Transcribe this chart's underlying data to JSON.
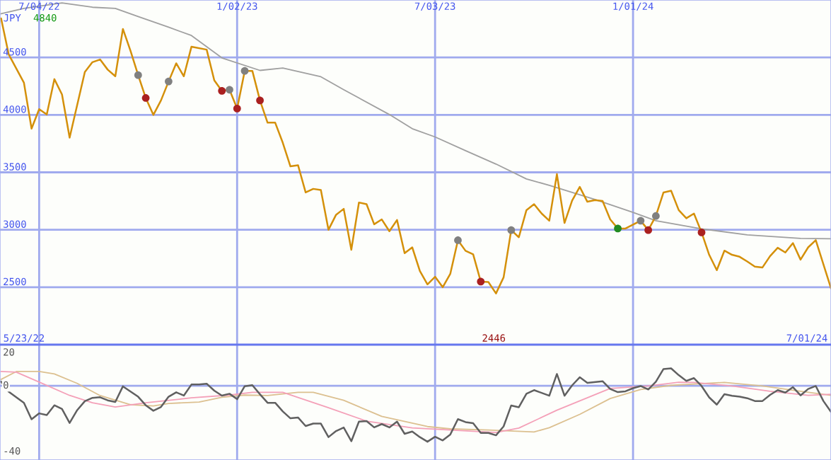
{
  "chart_data": [
    {
      "type": "line",
      "xlim": [
        "2022-05-29",
        "2024-07-01"
      ],
      "ylim": [
        2000,
        5000
      ],
      "yticks": [
        2500,
        3000,
        3500,
        4000,
        4500
      ],
      "xticks": [
        {
          "value": "2022-07-04",
          "label": "7/04/22"
        },
        {
          "value": "2023-01-02",
          "label": "1/02/23"
        },
        {
          "value": "2023-07-03",
          "label": "7/03/23"
        },
        {
          "value": "2024-01-01",
          "label": "1/01/24"
        }
      ],
      "grid": true,
      "annotations": [
        "JPY",
        "4840",
        "5/23/22",
        "2446",
        "7/01/24"
      ],
      "series": [
        {
          "color": "#a0a0a0",
          "x": [
            "2022-05-30",
            "2022-06-20",
            "2022-07-25",
            "2022-08-22",
            "2022-09-12",
            "2022-10-03",
            "2022-10-31",
            "2022-11-21",
            "2022-12-19",
            "2023-01-23",
            "2023-02-13",
            "2023-03-20",
            "2023-04-10",
            "2023-05-22",
            "2023-06-12",
            "2023-07-03",
            "2023-07-31",
            "2023-08-28",
            "2023-09-25",
            "2023-10-16",
            "2023-11-27",
            "2024-01-01",
            "2024-01-22",
            "2024-03-04",
            "2024-04-15",
            "2024-06-03",
            "2024-07-01"
          ],
          "values": [
            4880,
            4927,
            4974,
            4937,
            4927,
            4856,
            4763,
            4691,
            4496,
            4387,
            4408,
            4332,
            4219,
            4003,
            3880,
            3808,
            3689,
            3572,
            3442,
            3387,
            3264,
            3151,
            3079,
            3008,
            2956,
            2925,
            2922
          ]
        },
        {
          "color": "#d4900a",
          "x": [
            "2022-05-30",
            "2022-06-06",
            "2022-06-20",
            "2022-06-27",
            "2022-07-04",
            "2022-07-11",
            "2022-07-18",
            "2022-07-25",
            "2022-08-01",
            "2022-08-15",
            "2022-08-22",
            "2022-08-29",
            "2022-09-05",
            "2022-09-12",
            "2022-09-19",
            "2022-09-26",
            "2022-10-03",
            "2022-10-10",
            "2022-10-17",
            "2022-10-24",
            "2022-10-31",
            "2022-11-07",
            "2022-11-14",
            "2022-11-21",
            "2022-12-05",
            "2022-12-12",
            "2022-12-19",
            "2022-12-26",
            "2023-01-02",
            "2023-01-09",
            "2023-01-16",
            "2023-01-23",
            "2023-01-30",
            "2023-02-06",
            "2023-02-13",
            "2023-02-20",
            "2023-02-27",
            "2023-03-06",
            "2023-03-13",
            "2023-03-20",
            "2023-03-27",
            "2023-04-03",
            "2023-04-10",
            "2023-04-17",
            "2023-04-24",
            "2023-05-01",
            "2023-05-08",
            "2023-05-15",
            "2023-05-22",
            "2023-05-29",
            "2023-06-05",
            "2023-06-12",
            "2023-06-19",
            "2023-06-26",
            "2023-07-03",
            "2023-07-10",
            "2023-07-17",
            "2023-07-24",
            "2023-07-31",
            "2023-08-07",
            "2023-08-14",
            "2023-08-21",
            "2023-08-28",
            "2023-09-04",
            "2023-09-11",
            "2023-09-18",
            "2023-09-25",
            "2023-10-02",
            "2023-10-09",
            "2023-10-16",
            "2023-10-23",
            "2023-10-30",
            "2023-11-06",
            "2023-11-13",
            "2023-11-20",
            "2023-11-27",
            "2023-12-04",
            "2023-12-11",
            "2023-12-18",
            "2023-12-25",
            "2024-01-08",
            "2024-01-15",
            "2024-01-22",
            "2024-01-29",
            "2024-02-05",
            "2024-02-12",
            "2024-02-19",
            "2024-02-26",
            "2024-03-04",
            "2024-03-11",
            "2024-03-18",
            "2024-03-25",
            "2024-04-01",
            "2024-04-08",
            "2024-04-15",
            "2024-04-22",
            "2024-04-29",
            "2024-05-06",
            "2024-05-13",
            "2024-05-20",
            "2024-05-27",
            "2024-06-03",
            "2024-06-10",
            "2024-06-17",
            "2024-07-01"
          ],
          "values": [
            4840,
            4527,
            4280,
            3880,
            4050,
            4003,
            4311,
            4178,
            3802,
            4373,
            4459,
            4482,
            4394,
            4336,
            4748,
            4557,
            4346,
            4147,
            4000,
            4126,
            4291,
            4449,
            4336,
            4593,
            4568,
            4301,
            4209,
            4219,
            4055,
            4383,
            4383,
            4126,
            3932,
            3932,
            3757,
            3552,
            3562,
            3325,
            3356,
            3346,
            3000,
            3131,
            3182,
            2826,
            3237,
            3223,
            3048,
            3090,
            2987,
            3085,
            2796,
            2847,
            2642,
            2525,
            2591,
            2500,
            2617,
            2909,
            2817,
            2786,
            2549,
            2545,
            2446,
            2586,
            2997,
            2935,
            3171,
            3223,
            3141,
            3079,
            3484,
            3059,
            3254,
            3373,
            3244,
            3258,
            3250,
            3090,
            3011,
            3011,
            3079,
            2997,
            3120,
            3325,
            3340,
            3171,
            3100,
            3141,
            2977,
            2782,
            2648,
            2818,
            2782,
            2765,
            2724,
            2679,
            2672,
            2771,
            2843,
            2802,
            2884,
            2740,
            2847,
            2909,
            2490
          ]
        },
        {
          "type": "scatter",
          "color": "#808080",
          "x": [
            "2022-10-03",
            "2022-10-31",
            "2022-12-26",
            "2023-01-09",
            "2023-07-24",
            "2023-09-11",
            "2024-01-08",
            "2024-01-22"
          ],
          "values": [
            4346,
            4291,
            4219,
            4383,
            2909,
            2997,
            3079,
            3120
          ]
        },
        {
          "type": "scatter",
          "color": "#aa2020",
          "x": [
            "2022-10-10",
            "2022-12-19",
            "2023-01-02",
            "2023-01-23",
            "2023-08-14",
            "2024-01-15",
            "2024-03-04"
          ],
          "values": [
            4147,
            4209,
            4055,
            4126,
            2549,
            2997,
            2977
          ]
        },
        {
          "type": "scatter",
          "color": "#228b22",
          "x": [
            "2023-12-18"
          ],
          "values": [
            3011
          ]
        }
      ]
    },
    {
      "type": "line",
      "xlim": [
        "2022-05-29",
        "2024-07-01"
      ],
      "ylim": [
        -45,
        25
      ],
      "yticks": [
        -40,
        0,
        20
      ],
      "xticks": [
        {
          "value": "2022-07-04",
          "label": null
        },
        {
          "value": "2023-01-02",
          "label": null
        },
        {
          "value": "2023-07-03",
          "label": null
        },
        {
          "value": "2024-01-01",
          "label": null
        }
      ],
      "grid": "x",
      "tick_labels": "y",
      "ref_lines": [
        {
          "axis": "y",
          "value": 0,
          "label": null,
          "color": "#a0aaee"
        }
      ],
      "series": [
        {
          "color": "#dcc090",
          "x": [
            "2022-05-30",
            "2022-06-13",
            "2022-07-04",
            "2022-07-18",
            "2022-08-08",
            "2022-08-29",
            "2022-09-26",
            "2022-10-17",
            "2022-10-31",
            "2022-11-28",
            "2022-12-19",
            "2023-01-09",
            "2023-01-30",
            "2023-02-27",
            "2023-03-13",
            "2023-04-10",
            "2023-05-15",
            "2023-06-26",
            "2023-07-17",
            "2023-08-21",
            "2023-10-02",
            "2023-10-16",
            "2023-11-13",
            "2023-12-11",
            "2024-01-08",
            "2024-02-05",
            "2024-03-25",
            "2024-04-29",
            "2024-06-03",
            "2024-07-01"
          ],
          "values": [
            3.9,
            8.7,
            8.7,
            7.2,
            1.5,
            -5.9,
            -11.4,
            -12.2,
            -10.7,
            -9.8,
            -6.9,
            -5.6,
            -5.9,
            -3.9,
            -3.9,
            -8.8,
            -18.5,
            -24.7,
            -26.1,
            -26.8,
            -28,
            -25.4,
            -17.3,
            -7.7,
            -2.2,
            0.3,
            2.1,
            -0.1,
            -3.3,
            -5.8
          ]
        },
        {
          "color": "#f4a0b8",
          "x": [
            "2022-05-30",
            "2022-06-13",
            "2022-07-04",
            "2022-08-01",
            "2022-08-22",
            "2022-09-12",
            "2022-10-10",
            "2022-11-21",
            "2022-12-26",
            "2023-01-16",
            "2023-02-13",
            "2023-03-27",
            "2023-05-01",
            "2023-06-12",
            "2023-07-17",
            "2023-08-28",
            "2023-09-18",
            "2023-10-23",
            "2023-12-11",
            "2024-01-15",
            "2024-02-12",
            "2024-02-26",
            "2024-04-01",
            "2024-05-06",
            "2024-06-10",
            "2024-07-01"
          ],
          "values": [
            8.7,
            8.3,
            2.3,
            -5.8,
            -10.3,
            -12.8,
            -10.3,
            -7.3,
            -5.6,
            -3.9,
            -3.9,
            -13.3,
            -21.4,
            -25.5,
            -26.8,
            -28.3,
            -25.6,
            -14.8,
            -1.6,
            -0.1,
            2.2,
            2.1,
            -0.1,
            -3.3,
            -5.8,
            -5.1
          ]
        },
        {
          "color": "#606060",
          "x": [
            "2022-05-30",
            "2022-06-06",
            "2022-06-20",
            "2022-06-27",
            "2022-07-04",
            "2022-07-11",
            "2022-07-18",
            "2022-07-25",
            "2022-08-01",
            "2022-08-08",
            "2022-08-15",
            "2022-08-22",
            "2022-08-29",
            "2022-09-05",
            "2022-09-12",
            "2022-09-19",
            "2022-10-03",
            "2022-10-10",
            "2022-10-17",
            "2022-10-24",
            "2022-10-31",
            "2022-11-07",
            "2022-11-14",
            "2022-11-21",
            "2022-11-28",
            "2022-12-05",
            "2022-12-12",
            "2022-12-19",
            "2022-12-26",
            "2023-01-02",
            "2023-01-09",
            "2023-01-16",
            "2023-01-23",
            "2023-01-30",
            "2023-02-06",
            "2023-02-13",
            "2023-02-20",
            "2023-02-27",
            "2023-03-06",
            "2023-03-13",
            "2023-03-20",
            "2023-03-27",
            "2023-04-03",
            "2023-04-10",
            "2023-04-17",
            "2023-04-24",
            "2023-05-01",
            "2023-05-08",
            "2023-05-15",
            "2023-05-22",
            "2023-05-29",
            "2023-06-05",
            "2023-06-12",
            "2023-06-19",
            "2023-06-26",
            "2023-07-03",
            "2023-07-10",
            "2023-07-17",
            "2023-07-24",
            "2023-07-31",
            "2023-08-07",
            "2023-08-14",
            "2023-08-21",
            "2023-08-28",
            "2023-09-04",
            "2023-09-11",
            "2023-09-18",
            "2023-09-25",
            "2023-10-02",
            "2023-10-16",
            "2023-10-23",
            "2023-10-30",
            "2023-11-06",
            "2023-11-13",
            "2023-11-20",
            "2023-12-04",
            "2023-12-11",
            "2023-12-18",
            "2023-12-25",
            "2024-01-01",
            "2024-01-08",
            "2024-01-15",
            "2024-01-22",
            "2024-01-29",
            "2024-02-05",
            "2024-02-12",
            "2024-02-19",
            "2024-02-26",
            "2024-03-04",
            "2024-03-11",
            "2024-03-18",
            "2024-03-25",
            "2024-04-01",
            "2024-04-08",
            "2024-04-15",
            "2024-04-22",
            "2024-04-29",
            "2024-05-06",
            "2024-05-13",
            "2024-05-20",
            "2024-05-27",
            "2024-06-03",
            "2024-06-10",
            "2024-06-17",
            "2024-06-24",
            "2024-07-01"
          ],
          "values": [
            2.6,
            -3.6,
            -10.3,
            -20.3,
            -16.7,
            -17.7,
            -11.8,
            -14,
            -22.5,
            -14.7,
            -9.3,
            -7.3,
            -6.9,
            -8.8,
            -9.8,
            -0.3,
            -6.6,
            -11.8,
            -15.1,
            -12.8,
            -6.6,
            -3.9,
            -5.9,
            0.8,
            0.8,
            1.3,
            -2.9,
            -5.9,
            -4.8,
            -8.1,
            -0.2,
            0.4,
            -5.1,
            -10.3,
            -10.3,
            -15.5,
            -19.7,
            -19.2,
            -24.4,
            -22.9,
            -22.9,
            -31.1,
            -27.4,
            -25.3,
            -33.6,
            -21.7,
            -21.4,
            -25.2,
            -23.2,
            -25.2,
            -21.7,
            -29.1,
            -27.7,
            -31.1,
            -33.9,
            -30.9,
            -33.1,
            -29.5,
            -20.2,
            -22,
            -22.7,
            -28.6,
            -28.6,
            -30,
            -24.6,
            -11.9,
            -13,
            -4.8,
            -2.6,
            -6,
            7.2,
            -6,
            0.3,
            5.2,
            1.8,
            2.8,
            -1.9,
            -3.8,
            -3.3,
            -1.4,
            -0.1,
            -2.2,
            2.5,
            10.2,
            10.6,
            6.5,
            3,
            4.7,
            -0.1,
            -7,
            -11.4,
            -5.1,
            -6,
            -6.6,
            -7.5,
            -9.2,
            -9.2,
            -5.5,
            -2.6,
            -4.1,
            -0.8,
            -5.8,
            -1.9,
            -0.1,
            -9.2,
            -15.8
          ]
        }
      ]
    }
  ]
}
